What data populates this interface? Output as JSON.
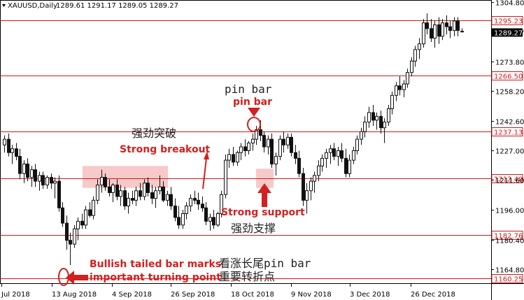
{
  "header": {
    "symbol": "XAUUSD,Daily",
    "ohlc": "1289.61 1291.17 1289.05 1289.27",
    "icon": "chart-type-triangle-icon"
  },
  "colors": {
    "up": "#111111",
    "down": "#111111",
    "level_line": "#d11a1a",
    "annotation": "#d32020",
    "zone_fill": "#f5bcbc",
    "current_price_bg": "#000000"
  },
  "chart_data": {
    "type": "candlestick",
    "title": "",
    "xlabel": "",
    "ylabel": "",
    "ylim": [
      1157.5,
      1306.0
    ],
    "y_ticks": [
      1304.8,
      1289.27,
      1273.8,
      1258.2,
      1242.6,
      1227.0,
      1211.6,
      1196.0,
      1180.4,
      1164.8
    ],
    "x_tick_labels": [
      "Jul 2018",
      "13 Aug 2018",
      "4 Sep 2018",
      "26 Sep 2018",
      "18 Oct 2018",
      "9 Nov 2018",
      "3 Dec 2018",
      "26 Dec 2018"
    ],
    "levels": [
      {
        "label": "1295.23",
        "value": 1295.23
      },
      {
        "label": "1266.50",
        "value": 1266.5
      },
      {
        "label": "1237.13",
        "value": 1237.13
      },
      {
        "label": "1212.40",
        "value": 1212.4
      },
      {
        "label": "1182.76",
        "value": 1182.76
      },
      {
        "label": "1160.25",
        "value": 1160.25
      }
    ],
    "current_price": {
      "label": "1289.27",
      "value": 1289.27
    },
    "zone": {
      "x_from": "Aug 2018",
      "x_to": "Sep 2018",
      "y_from": 1207.5,
      "y_to": 1219.0
    },
    "zone2": {
      "y_from": 1207.5,
      "y_to": 1217.5
    },
    "annotations": {
      "pin_bar_black": "pin bar",
      "pin_bar_red": "pin bar",
      "breakout_cn": "强劲突破",
      "breakout_en": "Strong breakout",
      "support_en": "Strong support",
      "support_cn": "强劲支撑",
      "tail_line1": "Bullish tailed bar marks",
      "tail_line2": "important turning point",
      "tail_cn_line1": "看涨长尾pin bar",
      "tail_cn_line2": "重要转折点"
    },
    "candles": [
      {
        "o": 1230,
        "h": 1235,
        "l": 1226,
        "c": 1233
      },
      {
        "o": 1233,
        "h": 1236,
        "l": 1224,
        "c": 1226
      },
      {
        "o": 1226,
        "h": 1230,
        "l": 1220,
        "c": 1228
      },
      {
        "o": 1228,
        "h": 1231,
        "l": 1222,
        "c": 1224
      },
      {
        "o": 1224,
        "h": 1228,
        "l": 1212,
        "c": 1215
      },
      {
        "o": 1215,
        "h": 1222,
        "l": 1210,
        "c": 1220
      },
      {
        "o": 1220,
        "h": 1223,
        "l": 1211,
        "c": 1213
      },
      {
        "o": 1213,
        "h": 1219,
        "l": 1208,
        "c": 1217
      },
      {
        "o": 1217,
        "h": 1220,
        "l": 1208,
        "c": 1211
      },
      {
        "o": 1211,
        "h": 1216,
        "l": 1206,
        "c": 1214
      },
      {
        "o": 1214,
        "h": 1216,
        "l": 1207,
        "c": 1209
      },
      {
        "o": 1209,
        "h": 1214,
        "l": 1207,
        "c": 1213
      },
      {
        "o": 1213,
        "h": 1215,
        "l": 1207,
        "c": 1210
      },
      {
        "o": 1210,
        "h": 1213,
        "l": 1202,
        "c": 1211
      },
      {
        "o": 1211,
        "h": 1214,
        "l": 1195,
        "c": 1197
      },
      {
        "o": 1197,
        "h": 1200,
        "l": 1187,
        "c": 1189
      },
      {
        "o": 1189,
        "h": 1193,
        "l": 1175,
        "c": 1180
      },
      {
        "o": 1180,
        "h": 1184,
        "l": 1167,
        "c": 1178
      },
      {
        "o": 1178,
        "h": 1188,
        "l": 1176,
        "c": 1186
      },
      {
        "o": 1186,
        "h": 1192,
        "l": 1180,
        "c": 1190
      },
      {
        "o": 1190,
        "h": 1194,
        "l": 1186,
        "c": 1188
      },
      {
        "o": 1188,
        "h": 1198,
        "l": 1186,
        "c": 1196
      },
      {
        "o": 1196,
        "h": 1200,
        "l": 1192,
        "c": 1193
      },
      {
        "o": 1193,
        "h": 1203,
        "l": 1191,
        "c": 1201
      },
      {
        "o": 1201,
        "h": 1212,
        "l": 1199,
        "c": 1209
      },
      {
        "o": 1209,
        "h": 1217,
        "l": 1205,
        "c": 1213
      },
      {
        "o": 1213,
        "h": 1215,
        "l": 1206,
        "c": 1208
      },
      {
        "o": 1208,
        "h": 1212,
        "l": 1203,
        "c": 1205
      },
      {
        "o": 1205,
        "h": 1210,
        "l": 1200,
        "c": 1209
      },
      {
        "o": 1209,
        "h": 1212,
        "l": 1201,
        "c": 1203
      },
      {
        "o": 1203,
        "h": 1209,
        "l": 1198,
        "c": 1206
      },
      {
        "o": 1206,
        "h": 1208,
        "l": 1196,
        "c": 1198
      },
      {
        "o": 1198,
        "h": 1205,
        "l": 1194,
        "c": 1202
      },
      {
        "o": 1202,
        "h": 1206,
        "l": 1199,
        "c": 1201
      },
      {
        "o": 1201,
        "h": 1208,
        "l": 1198,
        "c": 1206
      },
      {
        "o": 1206,
        "h": 1210,
        "l": 1201,
        "c": 1203
      },
      {
        "o": 1203,
        "h": 1212,
        "l": 1201,
        "c": 1210
      },
      {
        "o": 1210,
        "h": 1213,
        "l": 1203,
        "c": 1205
      },
      {
        "o": 1205,
        "h": 1209,
        "l": 1199,
        "c": 1202
      },
      {
        "o": 1202,
        "h": 1208,
        "l": 1197,
        "c": 1206
      },
      {
        "o": 1206,
        "h": 1214,
        "l": 1204,
        "c": 1208
      },
      {
        "o": 1208,
        "h": 1211,
        "l": 1200,
        "c": 1201
      },
      {
        "o": 1201,
        "h": 1206,
        "l": 1198,
        "c": 1204
      },
      {
        "o": 1204,
        "h": 1208,
        "l": 1196,
        "c": 1198
      },
      {
        "o": 1198,
        "h": 1202,
        "l": 1190,
        "c": 1192
      },
      {
        "o": 1192,
        "h": 1198,
        "l": 1186,
        "c": 1188
      },
      {
        "o": 1188,
        "h": 1196,
        "l": 1186,
        "c": 1194
      },
      {
        "o": 1194,
        "h": 1200,
        "l": 1191,
        "c": 1198
      },
      {
        "o": 1198,
        "h": 1204,
        "l": 1195,
        "c": 1202
      },
      {
        "o": 1202,
        "h": 1206,
        "l": 1199,
        "c": 1201
      },
      {
        "o": 1201,
        "h": 1205,
        "l": 1196,
        "c": 1199
      },
      {
        "o": 1199,
        "h": 1203,
        "l": 1195,
        "c": 1197
      },
      {
        "o": 1197,
        "h": 1200,
        "l": 1188,
        "c": 1190
      },
      {
        "o": 1190,
        "h": 1194,
        "l": 1185,
        "c": 1192
      },
      {
        "o": 1192,
        "h": 1196,
        "l": 1186,
        "c": 1188
      },
      {
        "o": 1188,
        "h": 1195,
        "l": 1187,
        "c": 1194
      },
      {
        "o": 1194,
        "h": 1206,
        "l": 1192,
        "c": 1204
      },
      {
        "o": 1204,
        "h": 1225,
        "l": 1202,
        "c": 1222
      },
      {
        "o": 1222,
        "h": 1228,
        "l": 1218,
        "c": 1225
      },
      {
        "o": 1225,
        "h": 1229,
        "l": 1219,
        "c": 1221
      },
      {
        "o": 1221,
        "h": 1227,
        "l": 1219,
        "c": 1226
      },
      {
        "o": 1226,
        "h": 1231,
        "l": 1222,
        "c": 1229
      },
      {
        "o": 1229,
        "h": 1233,
        "l": 1224,
        "c": 1227
      },
      {
        "o": 1227,
        "h": 1232,
        "l": 1225,
        "c": 1231
      },
      {
        "o": 1231,
        "h": 1236,
        "l": 1227,
        "c": 1233
      },
      {
        "o": 1233,
        "h": 1240,
        "l": 1230,
        "c": 1238
      },
      {
        "o": 1238,
        "h": 1243,
        "l": 1232,
        "c": 1235
      },
      {
        "o": 1235,
        "h": 1237,
        "l": 1226,
        "c": 1229
      },
      {
        "o": 1229,
        "h": 1235,
        "l": 1225,
        "c": 1233
      },
      {
        "o": 1233,
        "h": 1236,
        "l": 1218,
        "c": 1220
      },
      {
        "o": 1220,
        "h": 1226,
        "l": 1214,
        "c": 1224
      },
      {
        "o": 1224,
        "h": 1235,
        "l": 1222,
        "c": 1233
      },
      {
        "o": 1233,
        "h": 1237,
        "l": 1226,
        "c": 1230
      },
      {
        "o": 1230,
        "h": 1236,
        "l": 1228,
        "c": 1234
      },
      {
        "o": 1234,
        "h": 1236,
        "l": 1224,
        "c": 1226
      },
      {
        "o": 1226,
        "h": 1230,
        "l": 1220,
        "c": 1223
      },
      {
        "o": 1223,
        "h": 1227,
        "l": 1213,
        "c": 1215
      },
      {
        "o": 1215,
        "h": 1218,
        "l": 1198,
        "c": 1201
      },
      {
        "o": 1201,
        "h": 1210,
        "l": 1194,
        "c": 1206
      },
      {
        "o": 1206,
        "h": 1213,
        "l": 1201,
        "c": 1211
      },
      {
        "o": 1211,
        "h": 1216,
        "l": 1205,
        "c": 1214
      },
      {
        "o": 1214,
        "h": 1222,
        "l": 1211,
        "c": 1219
      },
      {
        "o": 1219,
        "h": 1225,
        "l": 1216,
        "c": 1223
      },
      {
        "o": 1223,
        "h": 1228,
        "l": 1218,
        "c": 1226
      },
      {
        "o": 1226,
        "h": 1230,
        "l": 1220,
        "c": 1228
      },
      {
        "o": 1228,
        "h": 1231,
        "l": 1222,
        "c": 1224
      },
      {
        "o": 1224,
        "h": 1229,
        "l": 1219,
        "c": 1227
      },
      {
        "o": 1227,
        "h": 1231,
        "l": 1221,
        "c": 1223
      },
      {
        "o": 1223,
        "h": 1228,
        "l": 1213,
        "c": 1215
      },
      {
        "o": 1215,
        "h": 1225,
        "l": 1213,
        "c": 1222
      },
      {
        "o": 1222,
        "h": 1229,
        "l": 1220,
        "c": 1227
      },
      {
        "o": 1227,
        "h": 1235,
        "l": 1225,
        "c": 1233
      },
      {
        "o": 1233,
        "h": 1239,
        "l": 1230,
        "c": 1237
      },
      {
        "o": 1237,
        "h": 1245,
        "l": 1234,
        "c": 1242
      },
      {
        "o": 1242,
        "h": 1250,
        "l": 1239,
        "c": 1247
      },
      {
        "o": 1247,
        "h": 1251,
        "l": 1240,
        "c": 1243
      },
      {
        "o": 1243,
        "h": 1247,
        "l": 1238,
        "c": 1245
      },
      {
        "o": 1245,
        "h": 1248,
        "l": 1236,
        "c": 1239
      },
      {
        "o": 1239,
        "h": 1244,
        "l": 1231,
        "c": 1242
      },
      {
        "o": 1242,
        "h": 1251,
        "l": 1240,
        "c": 1249
      },
      {
        "o": 1249,
        "h": 1258,
        "l": 1246,
        "c": 1256
      },
      {
        "o": 1256,
        "h": 1263,
        "l": 1253,
        "c": 1261
      },
      {
        "o": 1261,
        "h": 1266,
        "l": 1256,
        "c": 1259
      },
      {
        "o": 1259,
        "h": 1264,
        "l": 1255,
        "c": 1262
      },
      {
        "o": 1262,
        "h": 1270,
        "l": 1260,
        "c": 1268
      },
      {
        "o": 1268,
        "h": 1276,
        "l": 1266,
        "c": 1274
      },
      {
        "o": 1274,
        "h": 1282,
        "l": 1271,
        "c": 1280
      },
      {
        "o": 1280,
        "h": 1286,
        "l": 1275,
        "c": 1283
      },
      {
        "o": 1283,
        "h": 1296,
        "l": 1281,
        "c": 1294
      },
      {
        "o": 1294,
        "h": 1299,
        "l": 1288,
        "c": 1291
      },
      {
        "o": 1291,
        "h": 1296,
        "l": 1284,
        "c": 1286
      },
      {
        "o": 1286,
        "h": 1295,
        "l": 1281,
        "c": 1293
      },
      {
        "o": 1293,
        "h": 1297,
        "l": 1283,
        "c": 1287
      },
      {
        "o": 1287,
        "h": 1296,
        "l": 1285,
        "c": 1294
      },
      {
        "o": 1294,
        "h": 1298,
        "l": 1288,
        "c": 1292
      },
      {
        "o": 1292,
        "h": 1295,
        "l": 1286,
        "c": 1290
      },
      {
        "o": 1290,
        "h": 1297,
        "l": 1287,
        "c": 1295
      },
      {
        "o": 1295,
        "h": 1297,
        "l": 1287,
        "c": 1290
      },
      {
        "o": 1289.61,
        "h": 1291.17,
        "l": 1289.05,
        "c": 1289.27
      }
    ]
  }
}
